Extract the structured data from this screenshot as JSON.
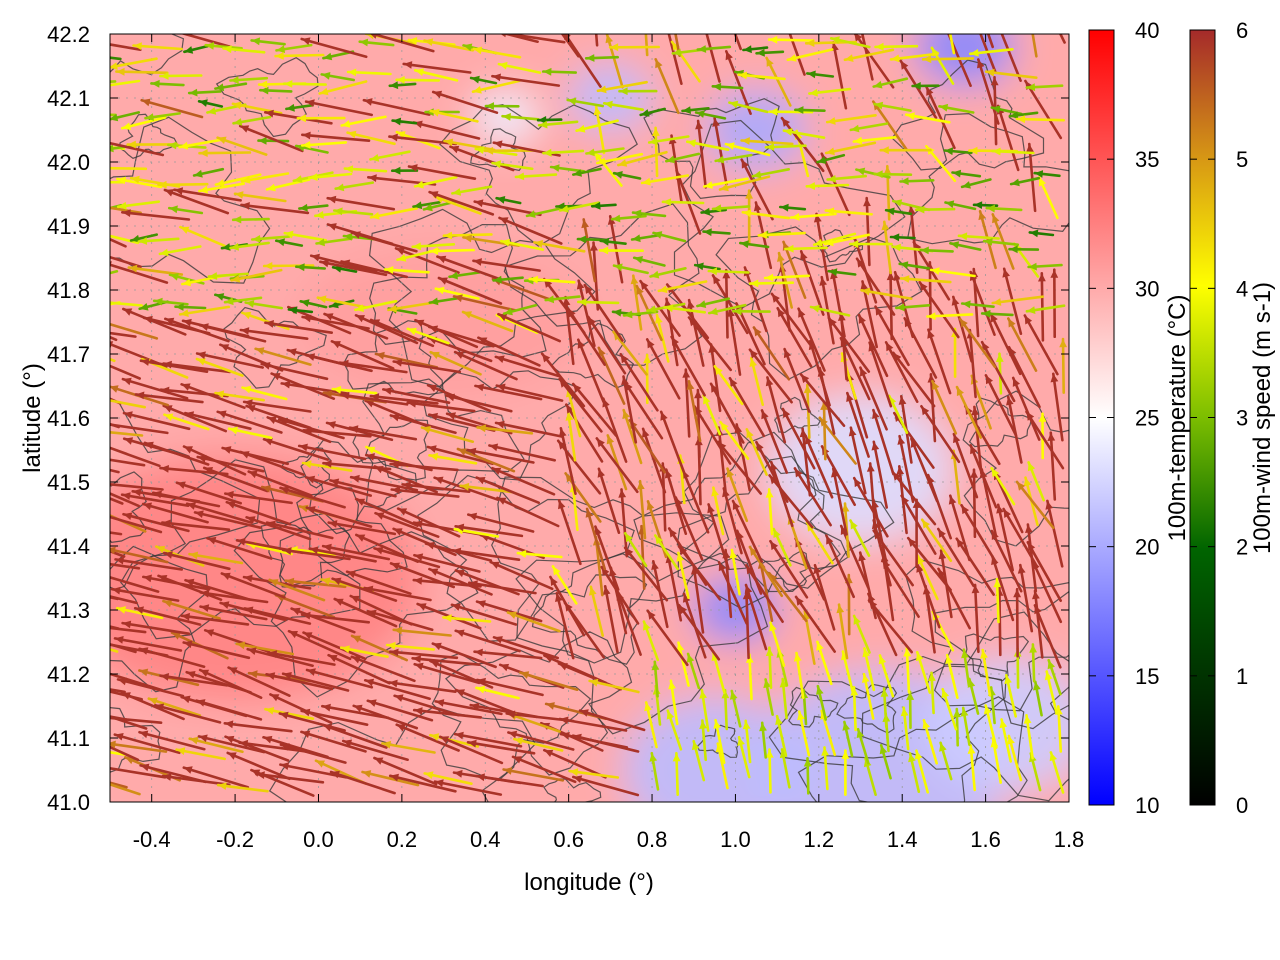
{
  "chart_data": {
    "type": "heatmap",
    "subtype": "temperature field with wind vectors and contour lines",
    "xlabel": "longitude (°)",
    "ylabel": "latitude (°)",
    "xlim": [
      -0.5,
      1.8
    ],
    "ylim": [
      41.0,
      42.2
    ],
    "xticks": [
      -0.4,
      -0.2,
      0.0,
      0.2,
      0.4,
      0.6,
      0.8,
      1.0,
      1.2,
      1.4,
      1.6,
      1.8
    ],
    "xtick_labels": [
      "-0.4",
      "-0.2",
      "0.0",
      "0.2",
      "0.4",
      "0.6",
      "0.8",
      "1.0",
      "1.2",
      "1.4",
      "1.6",
      "1.8"
    ],
    "yticks": [
      41.0,
      41.1,
      41.2,
      41.3,
      41.4,
      41.5,
      41.6,
      41.7,
      41.8,
      41.9,
      42.0,
      42.1,
      42.2
    ],
    "ytick_labels": [
      "41.0",
      "41.1",
      "41.2",
      "41.3",
      "41.4",
      "41.5",
      "41.6",
      "41.7",
      "41.8",
      "41.9",
      "42.0",
      "42.1",
      "42.2"
    ],
    "temperature_colorbar": {
      "label": "100m-temperature (°C)",
      "range": [
        10,
        40
      ],
      "ticks": [
        10,
        15,
        20,
        25,
        30,
        35,
        40
      ],
      "tick_labels": [
        "10",
        "15",
        "20",
        "25",
        "30",
        "35",
        "40"
      ],
      "colors": [
        "#0000ff",
        "#ffffff",
        "#ff0000"
      ]
    },
    "wind_colorbar": {
      "label": "100m-wind speed (m s-1)",
      "range": [
        0,
        6
      ],
      "ticks": [
        0,
        1,
        2,
        3,
        4,
        5,
        6
      ],
      "tick_labels": [
        "0",
        "1",
        "2",
        "3",
        "4",
        "5",
        "6"
      ],
      "colors": [
        "#000000",
        "#006400",
        "#7cbe00",
        "#ffff00",
        "#d89a14",
        "#a52a2a"
      ]
    },
    "cool_regions": [
      {
        "lon": 0.95,
        "lat": 41.05,
        "r": 0.22,
        "temp": 21
      },
      {
        "lon": 1.35,
        "lat": 41.05,
        "r": 0.3,
        "temp": 21
      },
      {
        "lon": 1.65,
        "lat": 41.12,
        "r": 0.2,
        "temp": 22
      },
      {
        "lon": 1.0,
        "lat": 41.3,
        "r": 0.1,
        "temp": 18
      },
      {
        "lon": 1.3,
        "lat": 41.52,
        "r": 0.22,
        "temp": 23
      },
      {
        "lon": 1.05,
        "lat": 42.05,
        "r": 0.12,
        "temp": 20
      },
      {
        "lon": 1.55,
        "lat": 42.18,
        "r": 0.12,
        "temp": 18
      },
      {
        "lon": 0.7,
        "lat": 42.1,
        "r": 0.1,
        "temp": 21
      },
      {
        "lon": 0.45,
        "lat": 42.07,
        "r": 0.08,
        "temp": 24
      }
    ],
    "warm_core": {
      "lon": -0.2,
      "lat": 41.35,
      "temp": 33
    },
    "background_temp": 30,
    "wind_field": {
      "grid_step_deg": 0.05,
      "regimes": [
        {
          "region": "west-lowlands",
          "direction_to": "W-NW",
          "speed": 5.8
        },
        {
          "region": "north-plateau",
          "direction_to": "W",
          "speed": 3.2
        },
        {
          "region": "central-east",
          "direction_to": "NNW",
          "speed": 5.5
        },
        {
          "region": "south-east-coast",
          "direction_to": "N-NW",
          "speed": 3.0
        }
      ]
    }
  }
}
